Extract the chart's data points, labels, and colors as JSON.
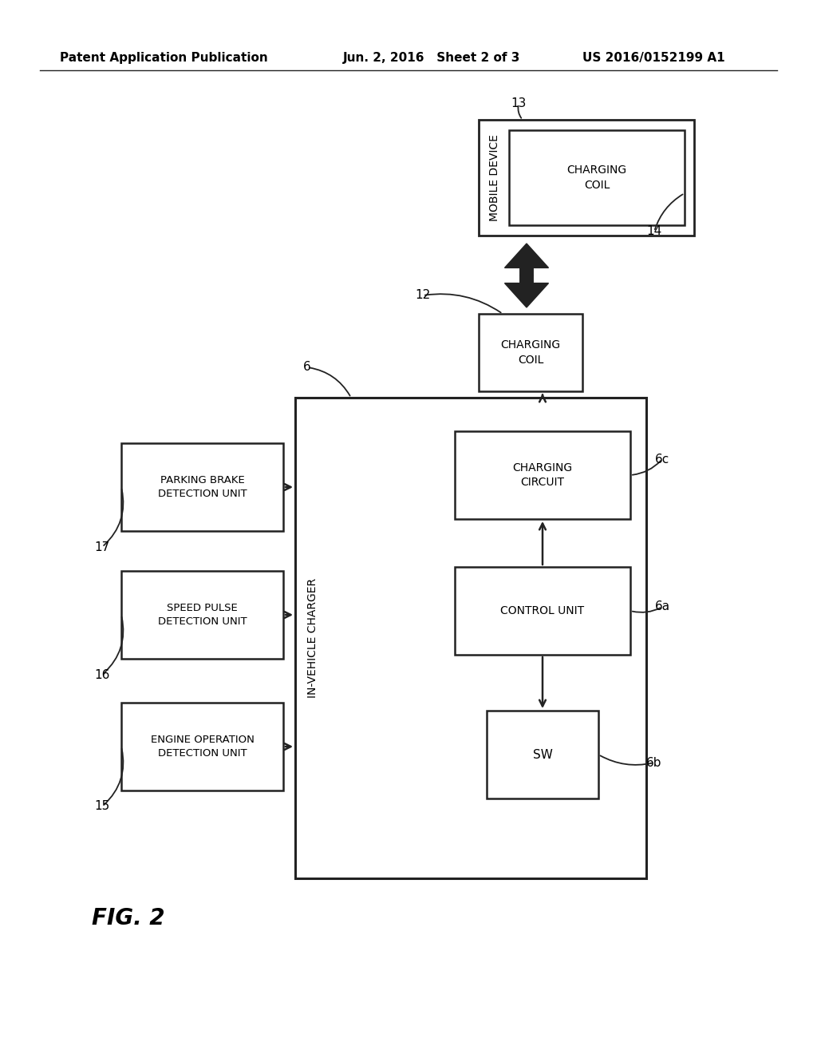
{
  "bg_color": "#ffffff",
  "header_left": "Patent Application Publication",
  "header_center": "Jun. 2, 2016   Sheet 2 of 3",
  "header_right": "US 2016/0152199 A1",
  "fig_label": "FIG. 2"
}
